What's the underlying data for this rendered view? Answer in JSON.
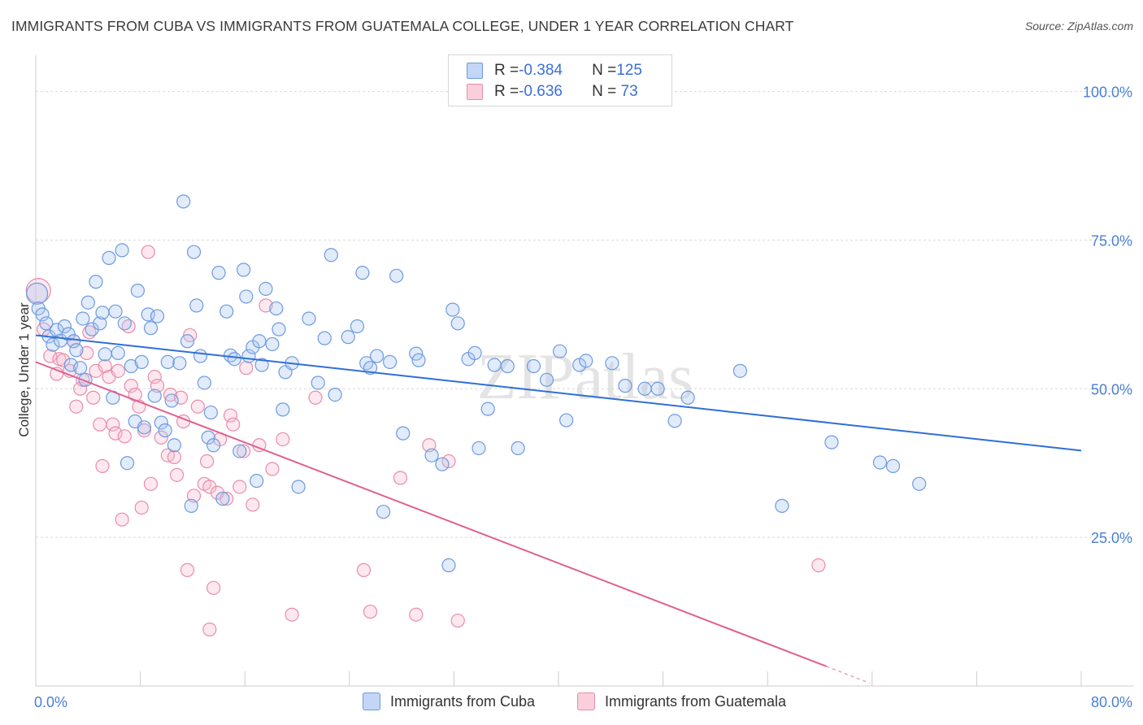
{
  "title": "IMMIGRANTS FROM CUBA VS IMMIGRANTS FROM GUATEMALA COLLEGE, UNDER 1 YEAR CORRELATION CHART",
  "source": "Source: ZipAtlas.com",
  "watermark": "ZIPatlas",
  "legend_top": [
    {
      "r_label": "R = ",
      "r_value": "-0.384",
      "n_label": "N = ",
      "n_value": "125"
    },
    {
      "r_label": "R = ",
      "r_value": "-0.636",
      "n_label": "N = ",
      "n_value": " 73"
    }
  ],
  "colors": {
    "cuba_fill": "#a9c6f0",
    "cuba_stroke": "#6d9ae0",
    "cuba_line": "#2f6fd6",
    "guat_fill": "#f6bccd",
    "guat_stroke": "#e98cab",
    "guat_line": "#e0608f",
    "tick_label": "#4a7fd4"
  },
  "chart_data": {
    "type": "scatter",
    "title": "IMMIGRANTS FROM CUBA VS IMMIGRANTS FROM GUATEMALA COLLEGE, UNDER 1 YEAR CORRELATION CHART",
    "xlabel": "",
    "ylabel": "College, Under 1 year",
    "xlim": [
      0,
      80
    ],
    "ylim": [
      0,
      105
    ],
    "x_tick_labels": [
      "0.0%",
      "80.0%"
    ],
    "y_ticks": [
      25,
      50,
      75,
      100
    ],
    "y_tick_labels": [
      "25.0%",
      "50.0%",
      "75.0%",
      "100.0%"
    ],
    "grid": true,
    "legend_position": "bottom",
    "series": [
      {
        "name": "Immigrants from Cuba",
        "r": -0.384,
        "n": 125,
        "trend": {
          "x": [
            0,
            80
          ],
          "y": [
            59.0,
            39.6
          ]
        },
        "points": [
          [
            0.1,
            66.0
          ],
          [
            0.2,
            63.5
          ],
          [
            0.5,
            62.5
          ],
          [
            0.8,
            61.0
          ],
          [
            1.0,
            58.8
          ],
          [
            1.3,
            57.4
          ],
          [
            1.6,
            59.9
          ],
          [
            1.9,
            58.1
          ],
          [
            2.2,
            60.5
          ],
          [
            2.5,
            59.2
          ],
          [
            2.7,
            54.0
          ],
          [
            2.9,
            58.0
          ],
          [
            3.1,
            56.5
          ],
          [
            3.4,
            53.5
          ],
          [
            3.6,
            61.8
          ],
          [
            3.8,
            51.5
          ],
          [
            4.0,
            64.5
          ],
          [
            4.3,
            60.0
          ],
          [
            4.6,
            68.0
          ],
          [
            4.9,
            61.0
          ],
          [
            5.1,
            62.8
          ],
          [
            5.3,
            55.8
          ],
          [
            5.6,
            72.0
          ],
          [
            5.9,
            48.5
          ],
          [
            6.1,
            63.0
          ],
          [
            6.3,
            56.0
          ],
          [
            6.6,
            73.3
          ],
          [
            6.8,
            61.0
          ],
          [
            7.0,
            37.5
          ],
          [
            7.3,
            53.8
          ],
          [
            7.6,
            44.5
          ],
          [
            7.8,
            66.5
          ],
          [
            8.1,
            54.5
          ],
          [
            8.3,
            43.5
          ],
          [
            8.6,
            62.5
          ],
          [
            8.8,
            60.2
          ],
          [
            9.1,
            48.8
          ],
          [
            9.3,
            62.2
          ],
          [
            9.6,
            44.3
          ],
          [
            9.9,
            43.0
          ],
          [
            10.1,
            54.5
          ],
          [
            10.4,
            48.0
          ],
          [
            10.6,
            40.5
          ],
          [
            11.0,
            54.3
          ],
          [
            11.3,
            81.5
          ],
          [
            11.6,
            58.0
          ],
          [
            11.9,
            30.3
          ],
          [
            12.1,
            73.0
          ],
          [
            12.3,
            64.0
          ],
          [
            12.6,
            55.5
          ],
          [
            12.9,
            51.0
          ],
          [
            13.2,
            41.8
          ],
          [
            13.4,
            46.0
          ],
          [
            13.6,
            40.5
          ],
          [
            14.0,
            69.5
          ],
          [
            14.3,
            31.5
          ],
          [
            14.6,
            63.0
          ],
          [
            14.9,
            55.6
          ],
          [
            15.2,
            55.0
          ],
          [
            15.6,
            39.5
          ],
          [
            15.9,
            70.0
          ],
          [
            16.1,
            65.5
          ],
          [
            16.3,
            55.5
          ],
          [
            16.6,
            57.0
          ],
          [
            16.9,
            34.5
          ],
          [
            17.1,
            58.0
          ],
          [
            17.3,
            54.0
          ],
          [
            17.6,
            66.8
          ],
          [
            18.1,
            57.5
          ],
          [
            18.4,
            63.5
          ],
          [
            18.6,
            60.0
          ],
          [
            18.9,
            46.5
          ],
          [
            19.1,
            52.8
          ],
          [
            19.6,
            54.3
          ],
          [
            20.1,
            33.5
          ],
          [
            20.9,
            61.8
          ],
          [
            21.6,
            51.0
          ],
          [
            22.1,
            58.5
          ],
          [
            22.6,
            72.5
          ],
          [
            22.9,
            49.0
          ],
          [
            23.9,
            58.7
          ],
          [
            24.6,
            60.5
          ],
          [
            25.0,
            69.5
          ],
          [
            25.3,
            54.3
          ],
          [
            25.6,
            53.5
          ],
          [
            26.1,
            55.5
          ],
          [
            26.6,
            29.3
          ],
          [
            27.1,
            54.5
          ],
          [
            27.6,
            69.0
          ],
          [
            28.1,
            42.5
          ],
          [
            29.1,
            55.9
          ],
          [
            29.3,
            54.8
          ],
          [
            30.3,
            38.8
          ],
          [
            31.1,
            37.3
          ],
          [
            31.6,
            20.3
          ],
          [
            31.9,
            63.3
          ],
          [
            32.3,
            61.0
          ],
          [
            33.1,
            55.0
          ],
          [
            33.6,
            56.0
          ],
          [
            33.9,
            40.0
          ],
          [
            34.6,
            46.6
          ],
          [
            35.1,
            54.0
          ],
          [
            36.1,
            53.8
          ],
          [
            36.9,
            40.0
          ],
          [
            38.1,
            53.8
          ],
          [
            39.1,
            51.5
          ],
          [
            40.1,
            56.3
          ],
          [
            40.6,
            44.7
          ],
          [
            41.6,
            54.0
          ],
          [
            42.1,
            54.7
          ],
          [
            44.1,
            54.3
          ],
          [
            45.1,
            50.5
          ],
          [
            46.6,
            50.0
          ],
          [
            47.6,
            50.0
          ],
          [
            48.9,
            44.6
          ],
          [
            49.9,
            48.5
          ],
          [
            53.9,
            53.0
          ],
          [
            57.1,
            30.3
          ],
          [
            60.9,
            41.0
          ],
          [
            64.6,
            37.6
          ],
          [
            65.6,
            37.0
          ],
          [
            67.6,
            34.0
          ]
        ]
      },
      {
        "name": "Immigrants from Guatemala",
        "r": -0.636,
        "n": 73,
        "trend": {
          "x": [
            0,
            60.5
          ],
          "y": [
            54.5,
            3.3
          ]
        },
        "trend_dashed": {
          "x": [
            60.5,
            63.8
          ],
          "y": [
            3.3,
            0.5
          ]
        },
        "points": [
          [
            0.2,
            66.5
          ],
          [
            0.6,
            60.0
          ],
          [
            1.1,
            55.5
          ],
          [
            1.6,
            52.5
          ],
          [
            1.8,
            55.0
          ],
          [
            2.1,
            54.8
          ],
          [
            2.6,
            53.0
          ],
          [
            2.9,
            58.0
          ],
          [
            3.1,
            47.0
          ],
          [
            3.4,
            50.0
          ],
          [
            3.6,
            51.5
          ],
          [
            3.9,
            56.0
          ],
          [
            4.1,
            59.5
          ],
          [
            4.4,
            48.5
          ],
          [
            4.6,
            53.0
          ],
          [
            4.9,
            44.0
          ],
          [
            5.1,
            37.0
          ],
          [
            5.3,
            53.8
          ],
          [
            5.6,
            52.0
          ],
          [
            5.9,
            44.0
          ],
          [
            6.1,
            42.5
          ],
          [
            6.3,
            53.0
          ],
          [
            6.6,
            28.0
          ],
          [
            6.8,
            42.0
          ],
          [
            7.1,
            60.5
          ],
          [
            7.3,
            50.5
          ],
          [
            7.6,
            49.0
          ],
          [
            7.9,
            47.0
          ],
          [
            8.1,
            30.0
          ],
          [
            8.3,
            43.0
          ],
          [
            8.6,
            73.0
          ],
          [
            8.8,
            34.0
          ],
          [
            9.1,
            52.0
          ],
          [
            9.3,
            50.5
          ],
          [
            9.6,
            41.8
          ],
          [
            10.1,
            38.8
          ],
          [
            10.3,
            49.0
          ],
          [
            10.6,
            38.5
          ],
          [
            10.8,
            35.5
          ],
          [
            11.1,
            48.5
          ],
          [
            11.3,
            44.5
          ],
          [
            11.6,
            19.5
          ],
          [
            11.8,
            59.0
          ],
          [
            12.1,
            32.0
          ],
          [
            12.4,
            47.0
          ],
          [
            12.9,
            34.0
          ],
          [
            13.1,
            37.8
          ],
          [
            13.3,
            33.5
          ],
          [
            13.6,
            16.5
          ],
          [
            13.9,
            32.5
          ],
          [
            14.1,
            41.5
          ],
          [
            14.6,
            31.5
          ],
          [
            14.9,
            45.5
          ],
          [
            15.1,
            44.0
          ],
          [
            15.6,
            33.5
          ],
          [
            15.9,
            39.5
          ],
          [
            16.1,
            53.5
          ],
          [
            16.6,
            30.5
          ],
          [
            17.1,
            40.5
          ],
          [
            17.6,
            64.0
          ],
          [
            18.1,
            36.5
          ],
          [
            18.9,
            41.5
          ],
          [
            19.6,
            12.0
          ],
          [
            21.4,
            48.5
          ],
          [
            13.3,
            9.5
          ],
          [
            25.1,
            19.5
          ],
          [
            25.6,
            12.5
          ],
          [
            27.9,
            35.0
          ],
          [
            29.1,
            12.0
          ],
          [
            30.1,
            40.5
          ],
          [
            31.6,
            37.8
          ],
          [
            32.3,
            11.0
          ],
          [
            59.9,
            20.3
          ]
        ]
      }
    ]
  },
  "legend_bottom": [
    "Immigrants from Cuba",
    "Immigrants from Guatemala"
  ]
}
